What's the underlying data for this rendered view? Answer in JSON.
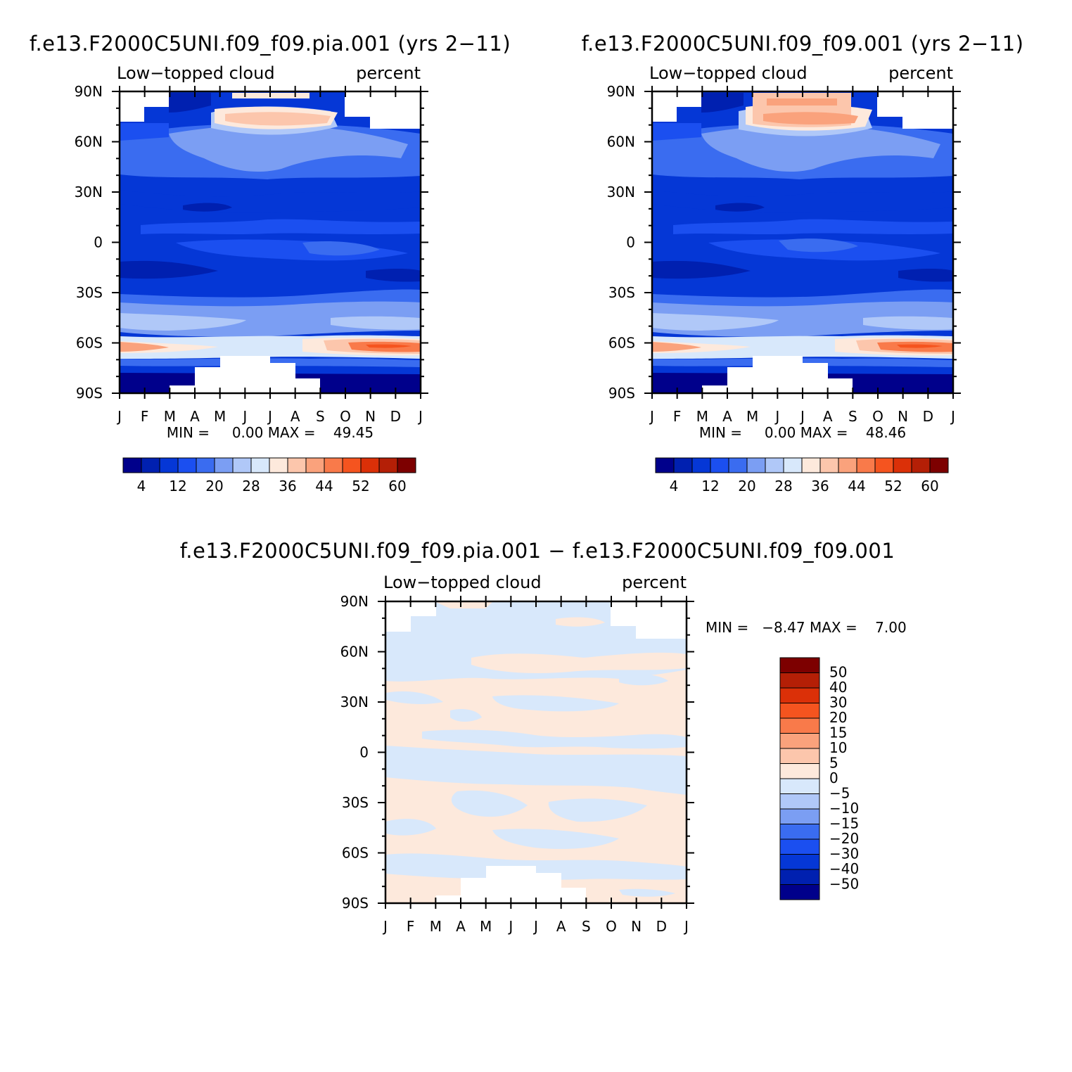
{
  "chart_data": [
    {
      "type": "heatmap",
      "title": "f.e13.F2000C5UNI.f09_f09.pia.001 (yrs 2−11)",
      "left_subtitle": "Low−topped cloud",
      "right_subtitle": "percent",
      "x_ticks": [
        "J",
        "F",
        "M",
        "A",
        "M",
        "J",
        "J",
        "A",
        "S",
        "O",
        "N",
        "D",
        "J"
      ],
      "y_ticks": [
        "90N",
        "60N",
        "30N",
        "0",
        "30S",
        "60S",
        "90S"
      ],
      "y_values": [
        90,
        60,
        30,
        0,
        -30,
        -60,
        -90
      ],
      "stats_text": "MIN =     0.00 MAX =    49.45",
      "min": 0.0,
      "max": 49.45,
      "colorbar_levels": [
        4,
        8,
        12,
        16,
        20,
        24,
        28,
        32,
        36,
        40,
        44,
        48,
        52,
        56,
        60
      ],
      "colorbar_labels": [
        "4",
        "12",
        "20",
        "28",
        "36",
        "44",
        "52",
        "60"
      ],
      "colormap": [
        "#00008b",
        "#0020b0",
        "#0537d6",
        "#1b4ff0",
        "#3a6cf0",
        "#7b9ef3",
        "#b0c8f8",
        "#d8e8fb",
        "#fde9dc",
        "#fcc6ac",
        "#faa27c",
        "#f97a4a",
        "#f5541f",
        "#db3008",
        "#b41f06",
        "#7d0000"
      ],
      "grid": "off",
      "legend": "bottom"
    },
    {
      "type": "heatmap",
      "title": "f.e13.F2000C5UNI.f09_f09.001 (yrs 2−11)",
      "left_subtitle": "Low−topped cloud",
      "right_subtitle": "percent",
      "x_ticks": [
        "J",
        "F",
        "M",
        "A",
        "M",
        "J",
        "J",
        "A",
        "S",
        "O",
        "N",
        "D",
        "J"
      ],
      "y_ticks": [
        "90N",
        "60N",
        "30N",
        "0",
        "30S",
        "60S",
        "90S"
      ],
      "y_values": [
        90,
        60,
        30,
        0,
        -30,
        -60,
        -90
      ],
      "stats_text": "MIN =     0.00 MAX =    48.46",
      "min": 0.0,
      "max": 48.46,
      "colorbar_levels": [
        4,
        8,
        12,
        16,
        20,
        24,
        28,
        32,
        36,
        40,
        44,
        48,
        52,
        56,
        60
      ],
      "colorbar_labels": [
        "4",
        "12",
        "20",
        "28",
        "36",
        "44",
        "52",
        "60"
      ],
      "colormap": [
        "#00008b",
        "#0020b0",
        "#0537d6",
        "#1b4ff0",
        "#3a6cf0",
        "#7b9ef3",
        "#b0c8f8",
        "#d8e8fb",
        "#fde9dc",
        "#fcc6ac",
        "#faa27c",
        "#f97a4a",
        "#f5541f",
        "#db3008",
        "#b41f06",
        "#7d0000"
      ],
      "grid": "off",
      "legend": "bottom"
    },
    {
      "type": "heatmap",
      "title": "f.e13.F2000C5UNI.f09_f09.pia.001 − f.e13.F2000C5UNI.f09_f09.001",
      "left_subtitle": "Low−topped cloud",
      "right_subtitle": "percent",
      "x_ticks": [
        "J",
        "F",
        "M",
        "A",
        "M",
        "J",
        "J",
        "A",
        "S",
        "O",
        "N",
        "D",
        "J"
      ],
      "y_ticks": [
        "90N",
        "60N",
        "30N",
        "0",
        "30S",
        "60S",
        "90S"
      ],
      "y_values": [
        90,
        60,
        30,
        0,
        -30,
        -60,
        -90
      ],
      "stats_text": "MIN =   −8.47 MAX =    7.00",
      "min": -8.47,
      "max": 7.0,
      "colorbar_levels": [
        -50,
        -40,
        -30,
        -20,
        -15,
        -10,
        -5,
        0,
        5,
        10,
        15,
        20,
        30,
        40,
        50
      ],
      "colorbar_labels": [
        "50",
        "40",
        "30",
        "20",
        "15",
        "10",
        "5",
        "0",
        "−5",
        "−10",
        "−15",
        "−20",
        "−30",
        "−40",
        "−50"
      ],
      "colormap": [
        "#00008b",
        "#0020b0",
        "#0537d6",
        "#1b4ff0",
        "#3a6cf0",
        "#7b9ef3",
        "#b0c8f8",
        "#d8e8fb",
        "#fde9dc",
        "#fcc6ac",
        "#faa27c",
        "#f97a4a",
        "#f5541f",
        "#db3008",
        "#b41f06",
        "#7d0000"
      ],
      "grid": "off",
      "legend": "right"
    }
  ]
}
